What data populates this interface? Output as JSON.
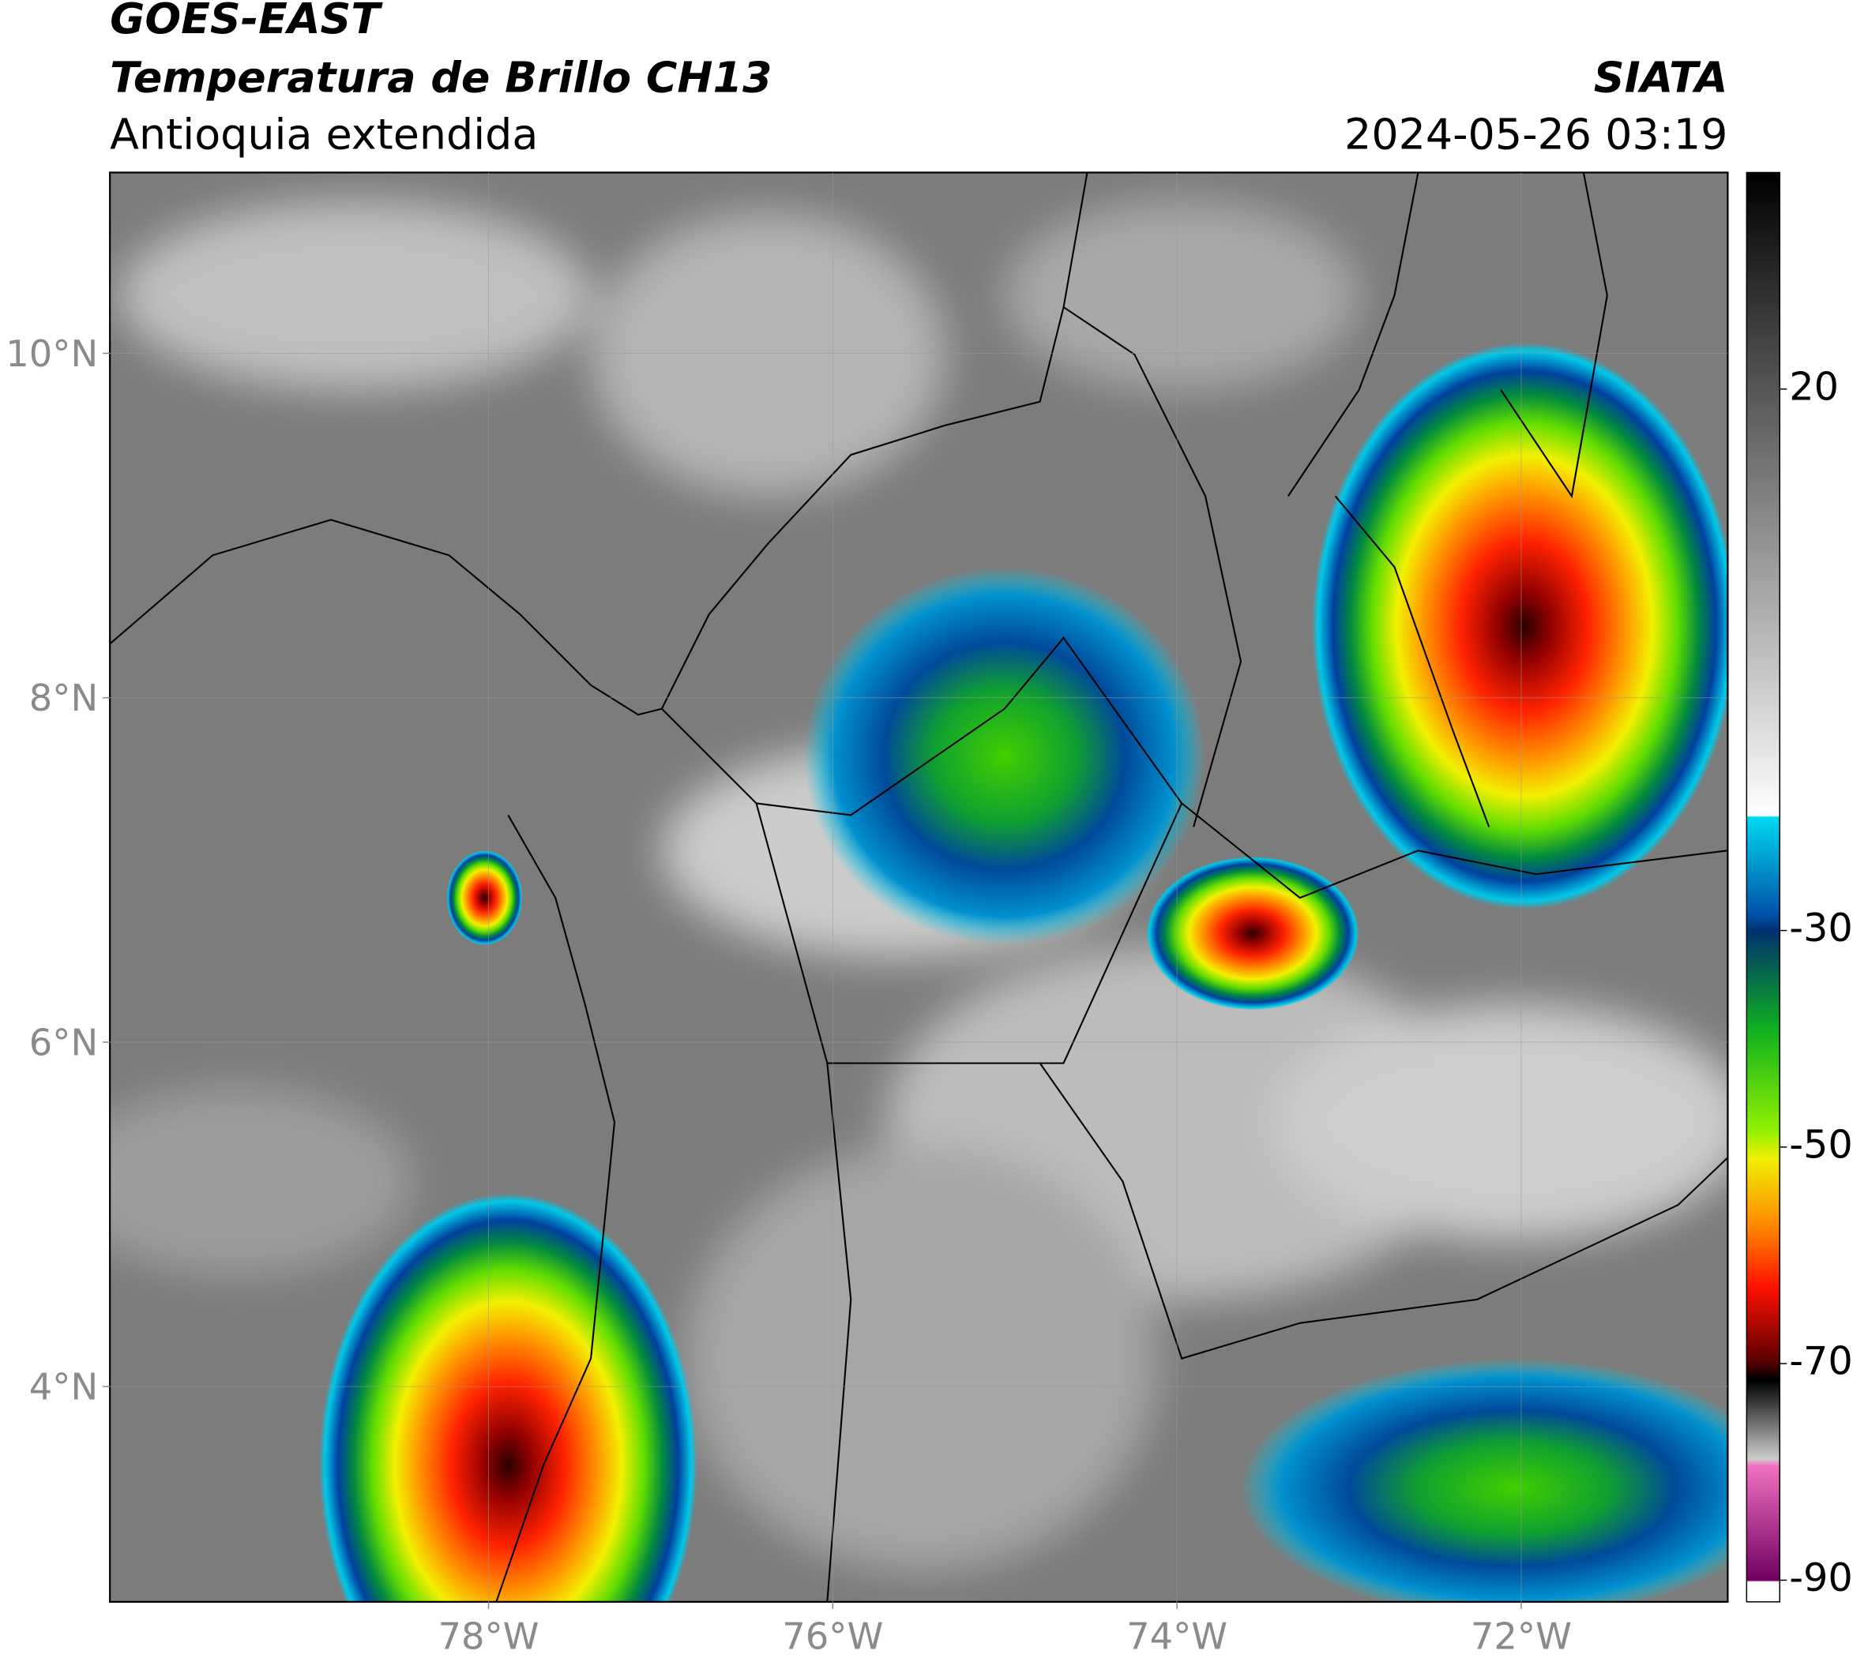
{
  "header": {
    "title": "GOES-EAST",
    "subtitle": "Temperatura de Brillo CH13",
    "region": "Antioquia extendida",
    "source": "SIATA",
    "datetime": "2024-05-26 03:19"
  },
  "chart_data": {
    "type": "map",
    "xlim": [
      -80.2,
      -70.8
    ],
    "ylim": [
      2.75,
      11.05
    ],
    "xticks": [
      {
        "value": -78,
        "label": "78°W"
      },
      {
        "value": -76,
        "label": "76°W"
      },
      {
        "value": -74,
        "label": "74°W"
      },
      {
        "value": -72,
        "label": "72°W"
      }
    ],
    "yticks": [
      {
        "value": 4,
        "label": "4°N"
      },
      {
        "value": 6,
        "label": "6°N"
      },
      {
        "value": 8,
        "label": "8°N"
      },
      {
        "value": 10,
        "label": "10°N"
      }
    ],
    "grid": true,
    "colorbar": {
      "lim": [
        -92,
        40
      ],
      "ticks": [
        20,
        -30,
        -50,
        -70,
        -90
      ]
    }
  }
}
